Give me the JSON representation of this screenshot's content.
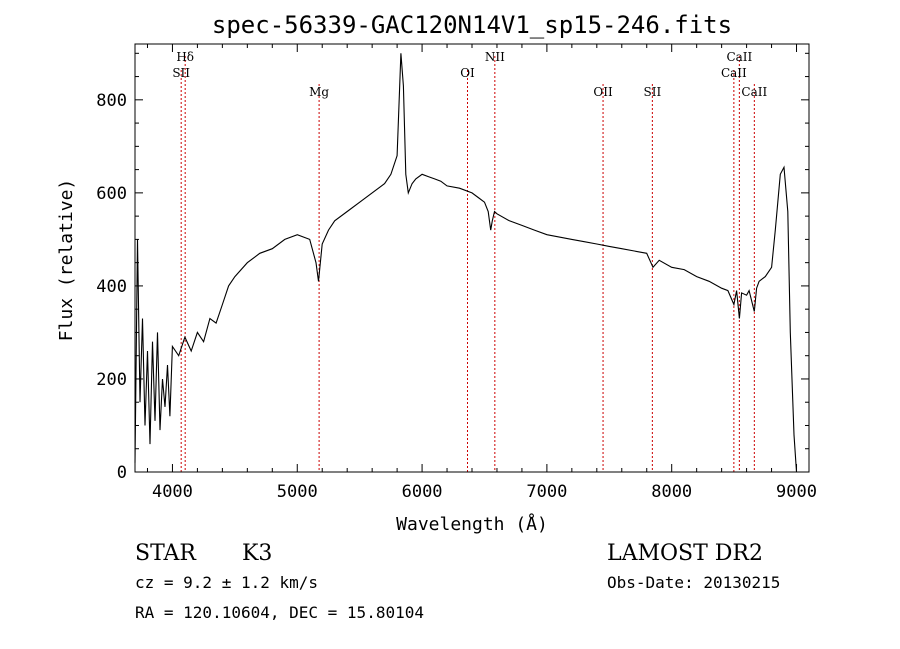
{
  "chart_data": {
    "type": "line",
    "title": "spec-56339-GAC120N14V1_sp15-246.fits",
    "xlabel": "Wavelength (Å)",
    "ylabel": "Flux (relative)",
    "xlim": [
      3700,
      9100
    ],
    "ylim": [
      0,
      920
    ],
    "x_ticks": [
      4000,
      5000,
      6000,
      7000,
      8000,
      9000
    ],
    "y_ticks": [
      0,
      200,
      400,
      600,
      800
    ],
    "grid": false,
    "series": [
      {
        "x": [
          3700,
          3720,
          3740,
          3760,
          3780,
          3800,
          3820,
          3840,
          3860,
          3880,
          3900,
          3920,
          3940,
          3960,
          3980,
          4000,
          4050,
          4100,
          4150,
          4200,
          4250,
          4300,
          4350,
          4400,
          4450,
          4500,
          4600,
          4700,
          4800,
          4900,
          5000,
          5100,
          5150,
          5170,
          5200,
          5250,
          5300,
          5400,
          5500,
          5600,
          5700,
          5750,
          5800,
          5830,
          5850,
          5870,
          5890,
          5920,
          5950,
          6000,
          6050,
          6100,
          6150,
          6200,
          6300,
          6400,
          6450,
          6500,
          6530,
          6550,
          6563,
          6580,
          6600,
          6700,
          6800,
          6900,
          7000,
          7100,
          7200,
          7300,
          7400,
          7500,
          7600,
          7700,
          7800,
          7850,
          7900,
          8000,
          8100,
          8200,
          8300,
          8400,
          8450,
          8498,
          8520,
          8542,
          8560,
          8600,
          8620,
          8662,
          8680,
          8700,
          8750,
          8800,
          8830,
          8850,
          8870,
          8900,
          8930,
          8950,
          8980,
          9000
        ],
        "y": [
          20,
          500,
          150,
          330,
          100,
          260,
          60,
          280,
          110,
          300,
          90,
          200,
          140,
          230,
          120,
          270,
          250,
          290,
          260,
          300,
          280,
          330,
          320,
          360,
          400,
          420,
          450,
          470,
          480,
          500,
          510,
          500,
          450,
          410,
          490,
          520,
          540,
          560,
          580,
          600,
          620,
          640,
          680,
          900,
          830,
          640,
          600,
          620,
          630,
          640,
          635,
          630,
          625,
          615,
          610,
          600,
          590,
          580,
          560,
          520,
          540,
          560,
          555,
          540,
          530,
          520,
          510,
          505,
          500,
          495,
          490,
          485,
          480,
          475,
          470,
          440,
          455,
          440,
          435,
          420,
          410,
          395,
          390,
          360,
          390,
          330,
          385,
          380,
          390,
          345,
          395,
          410,
          420,
          440,
          520,
          580,
          640,
          655,
          560,
          300,
          80,
          0
        ]
      }
    ],
    "annotations": [
      {
        "label": "Hδ",
        "x": 4102,
        "row": 0
      },
      {
        "label": "SII",
        "x": 4070,
        "row": 1
      },
      {
        "label": "Mg",
        "x": 5175,
        "row": 2
      },
      {
        "label": "OI",
        "x": 6364,
        "row": 1
      },
      {
        "label": "NII",
        "x": 6583,
        "row": 0
      },
      {
        "label": "OII",
        "x": 7450,
        "row": 2
      },
      {
        "label": "SII",
        "x": 7845,
        "row": 2
      },
      {
        "label": "CaII",
        "x": 8542,
        "row": 0
      },
      {
        "label": "CaII",
        "x": 8498,
        "row": 1
      },
      {
        "label": "CaII",
        "x": 8662,
        "row": 2
      }
    ]
  },
  "info": {
    "object_type": "STAR",
    "subclass": "K3",
    "survey": "LAMOST DR2",
    "redshift_text": "cz = 9.2 ± 1.2 km/s",
    "obs_date": "Obs-Date: 20130215",
    "coords": "RA = 120.10604, DEC =  15.80104"
  },
  "colors": {
    "line": "#000000",
    "marker": "#cc0000",
    "axes": "#000000"
  }
}
